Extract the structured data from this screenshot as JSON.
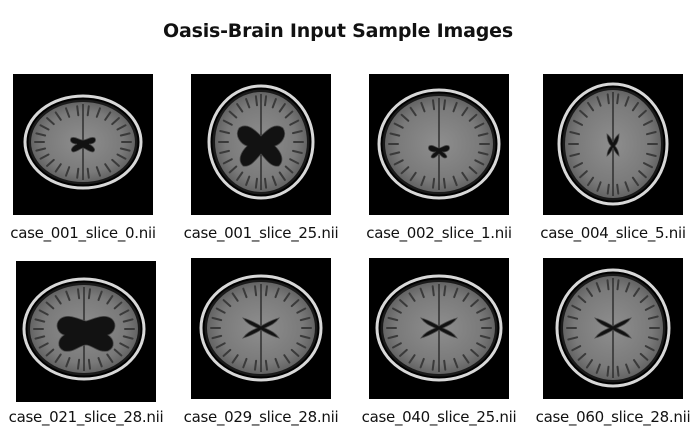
{
  "figure": {
    "title": "Oasis-Brain Input Sample Images"
  },
  "images": [
    {
      "label": "case_001_slice_0.nii",
      "ventricle": "small-posterior"
    },
    {
      "label": "case_001_slice_25.nii",
      "ventricle": "large-butterfly"
    },
    {
      "label": "case_002_slice_1.nii",
      "ventricle": "small-low"
    },
    {
      "label": "case_004_slice_5.nii",
      "ventricle": "small-third"
    },
    {
      "label": "case_021_slice_28.nii",
      "ventricle": "large-dilated"
    },
    {
      "label": "case_029_slice_28.nii",
      "ventricle": "narrow-butterfly"
    },
    {
      "label": "case_040_slice_25.nii",
      "ventricle": "narrow-butterfly"
    },
    {
      "label": "case_060_slice_28.nii",
      "ventricle": "narrow-butterfly"
    }
  ]
}
